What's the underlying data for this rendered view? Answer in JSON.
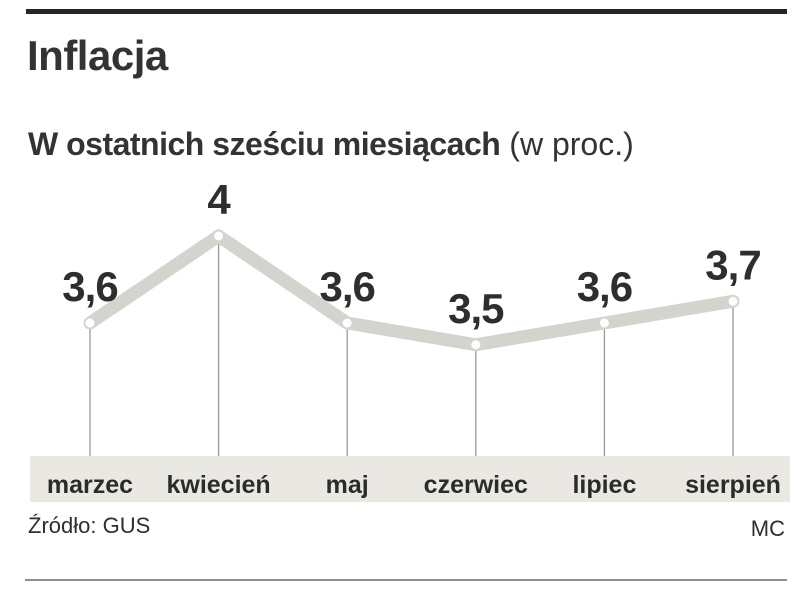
{
  "header": {
    "title": "Inflacja"
  },
  "subtitle": {
    "bold": "W ostatnich sześciu miesiącach",
    "note": "(w proc.)"
  },
  "chart_data": {
    "type": "line",
    "title": "Inflacja",
    "subtitle": "W ostatnich sześciu miesiącach (w proc.)",
    "unit": "proc.",
    "categories": [
      "marzec",
      "kwiecień",
      "maj",
      "czerwiec",
      "lipiec",
      "sierpień"
    ],
    "values": [
      3.6,
      4.0,
      3.6,
      3.5,
      3.6,
      3.7
    ],
    "value_labels": [
      "3,6",
      "4",
      "3,6",
      "3,5",
      "3,6",
      "3,7"
    ],
    "axes_visible": false,
    "grid": false,
    "legend": false,
    "line_color": "#d4d3ce",
    "marker_color": "#ffffff",
    "leader_line_color": "#999999",
    "band_color": "#eae8e2",
    "label_color": "#2e2e2e"
  },
  "footer": {
    "source": "Źródło: GUS",
    "credit": "MC"
  }
}
